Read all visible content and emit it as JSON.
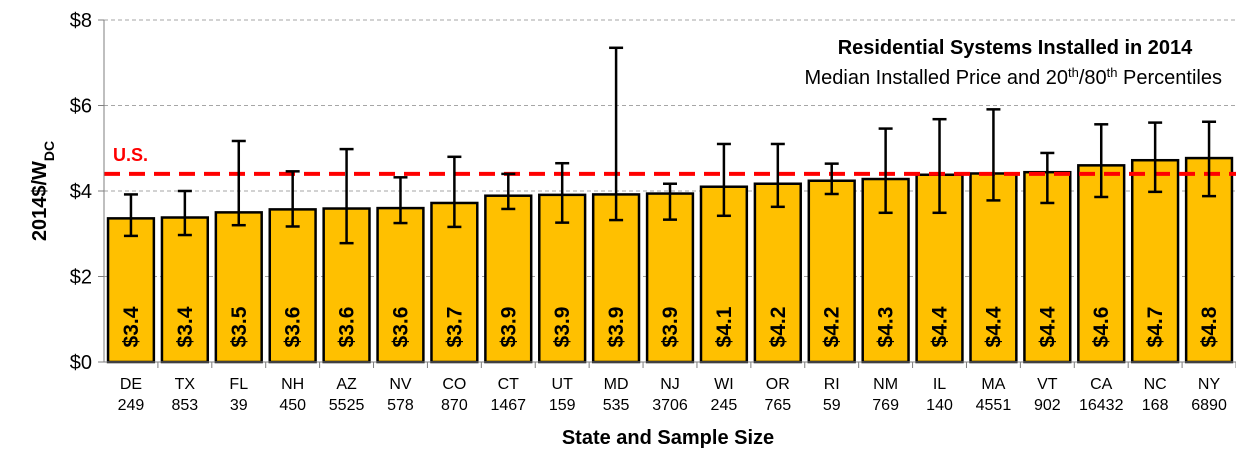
{
  "chart_data": {
    "type": "bar",
    "title": "Residential Systems Installed in 2014",
    "subtitle": {
      "pre": "Median Installed Price and 20",
      "sup1": "th",
      "mid": "/80",
      "sup2": "th",
      "post": " Percentiles"
    },
    "xlabel": "State and Sample Size",
    "ylabel": {
      "main": "2014$/W",
      "sub": "DC"
    },
    "ylim": [
      0,
      8
    ],
    "yticks": [
      0,
      2,
      4,
      6,
      8
    ],
    "ytick_labels": [
      "$0",
      "$2",
      "$4",
      "$6",
      "$8"
    ],
    "grid": true,
    "categories": [
      "DE",
      "TX",
      "FL",
      "NH",
      "AZ",
      "NV",
      "CO",
      "CT",
      "UT",
      "MD",
      "NJ",
      "WI",
      "OR",
      "RI",
      "NM",
      "IL",
      "MA",
      "VT",
      "CA",
      "NC",
      "NY"
    ],
    "sample_sizes": [
      "249",
      "853",
      "39",
      "450",
      "5525",
      "578",
      "870",
      "1467",
      "159",
      "535",
      "3706",
      "245",
      "765",
      "59",
      "769",
      "140",
      "4551",
      "902",
      "16432",
      "168",
      "6890"
    ],
    "values": [
      3.36,
      3.38,
      3.5,
      3.57,
      3.59,
      3.6,
      3.72,
      3.89,
      3.91,
      3.92,
      3.94,
      4.1,
      4.17,
      4.24,
      4.28,
      4.38,
      4.41,
      4.44,
      4.6,
      4.72,
      4.77
    ],
    "value_labels": [
      "$3.4",
      "$3.4",
      "$3.5",
      "$3.6",
      "$3.6",
      "$3.6",
      "$3.7",
      "$3.9",
      "$3.9",
      "$3.9",
      "$3.9",
      "$4.1",
      "$4.2",
      "$4.2",
      "$4.3",
      "$4.4",
      "$4.4",
      "$4.4",
      "$4.6",
      "$4.7",
      "$4.8"
    ],
    "p20": [
      2.95,
      2.97,
      3.2,
      3.17,
      2.78,
      3.25,
      3.16,
      3.58,
      3.26,
      3.32,
      3.33,
      3.42,
      3.63,
      3.93,
      3.49,
      3.49,
      3.78,
      3.72,
      3.86,
      3.98,
      3.88
    ],
    "p80": [
      3.92,
      4.0,
      5.17,
      4.46,
      4.98,
      4.32,
      4.8,
      4.4,
      4.65,
      7.35,
      4.17,
      5.1,
      5.1,
      4.64,
      5.46,
      5.68,
      5.91,
      4.89,
      5.56,
      5.6,
      5.62
    ],
    "reference_line": {
      "label": "U.S.",
      "value": 4.4
    },
    "colors": {
      "bar": "#FFC000",
      "bar_edge": "#000000",
      "reference": "#FF0000",
      "grid": "#A6A6A6",
      "error_bar": "#000000"
    }
  }
}
